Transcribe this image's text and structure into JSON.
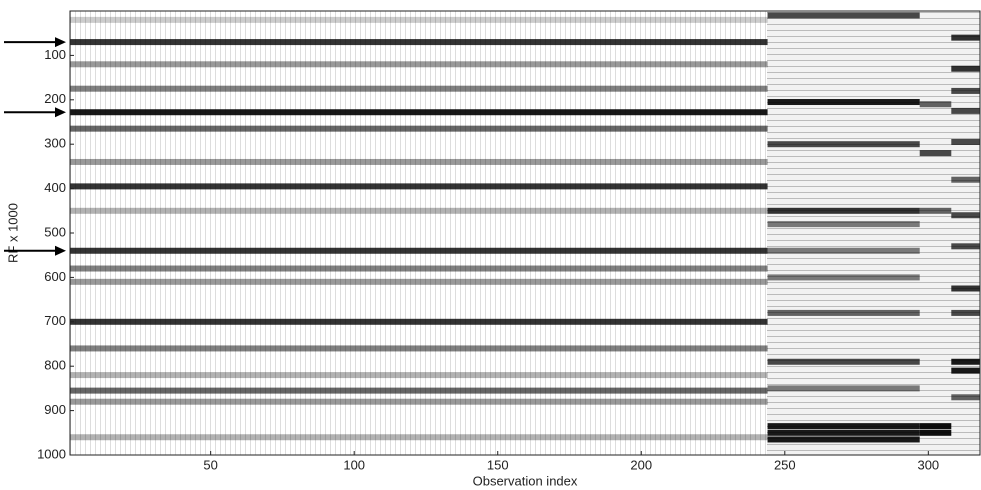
{
  "chart_data": {
    "type": "heatmap",
    "xlabel": "Observation index",
    "ylabel": "RF x 1000",
    "xlim": [
      1,
      318
    ],
    "ylim": [
      1000,
      0
    ],
    "xticks": [
      50,
      100,
      150,
      200,
      250,
      300
    ],
    "yticks": [
      100,
      200,
      300,
      400,
      500,
      600,
      700,
      800,
      900,
      1000
    ],
    "color": "#000000",
    "arrows": [
      70,
      228,
      540
    ],
    "bands": {
      "x0": [
        1,
        1,
        1,
        1,
        1,
        1,
        1,
        1,
        1,
        1,
        1,
        1,
        1,
        1,
        1,
        1,
        1,
        1,
        244,
        244,
        244,
        244,
        244,
        244,
        244,
        244,
        244,
        244,
        244,
        244,
        244,
        297,
        297,
        297,
        297,
        297,
        308,
        308,
        308,
        308,
        308,
        308,
        308,
        308,
        308,
        308,
        308,
        308,
        308
      ],
      "x1": [
        244,
        244,
        244,
        244,
        244,
        244,
        244,
        244,
        244,
        244,
        244,
        244,
        244,
        244,
        244,
        244,
        244,
        244,
        297,
        297,
        297,
        297,
        297,
        297,
        297,
        297,
        297,
        297,
        297,
        297,
        297,
        308,
        308,
        308,
        308,
        308,
        318,
        318,
        318,
        318,
        318,
        318,
        318,
        318,
        318,
        318,
        318,
        318,
        318
      ],
      "y": [
        70,
        120,
        175,
        228,
        265,
        340,
        395,
        450,
        540,
        580,
        610,
        700,
        760,
        820,
        855,
        880,
        960,
        20,
        10,
        205,
        300,
        450,
        480,
        540,
        600,
        680,
        790,
        850,
        935,
        950,
        965,
        210,
        320,
        450,
        935,
        950,
        60,
        130,
        180,
        225,
        295,
        380,
        460,
        530,
        625,
        680,
        790,
        810,
        870
      ],
      "values": [
        0.8,
        0.4,
        0.5,
        0.9,
        0.6,
        0.4,
        0.8,
        0.3,
        0.8,
        0.5,
        0.4,
        0.8,
        0.5,
        0.3,
        0.6,
        0.4,
        0.3,
        0.2,
        0.7,
        0.9,
        0.7,
        0.8,
        0.5,
        0.5,
        0.5,
        0.6,
        0.7,
        0.5,
        0.9,
        0.9,
        0.9,
        0.6,
        0.7,
        0.6,
        0.95,
        0.95,
        0.8,
        0.8,
        0.7,
        0.7,
        0.7,
        0.6,
        0.7,
        0.7,
        0.8,
        0.7,
        0.9,
        0.9,
        0.6
      ]
    }
  }
}
